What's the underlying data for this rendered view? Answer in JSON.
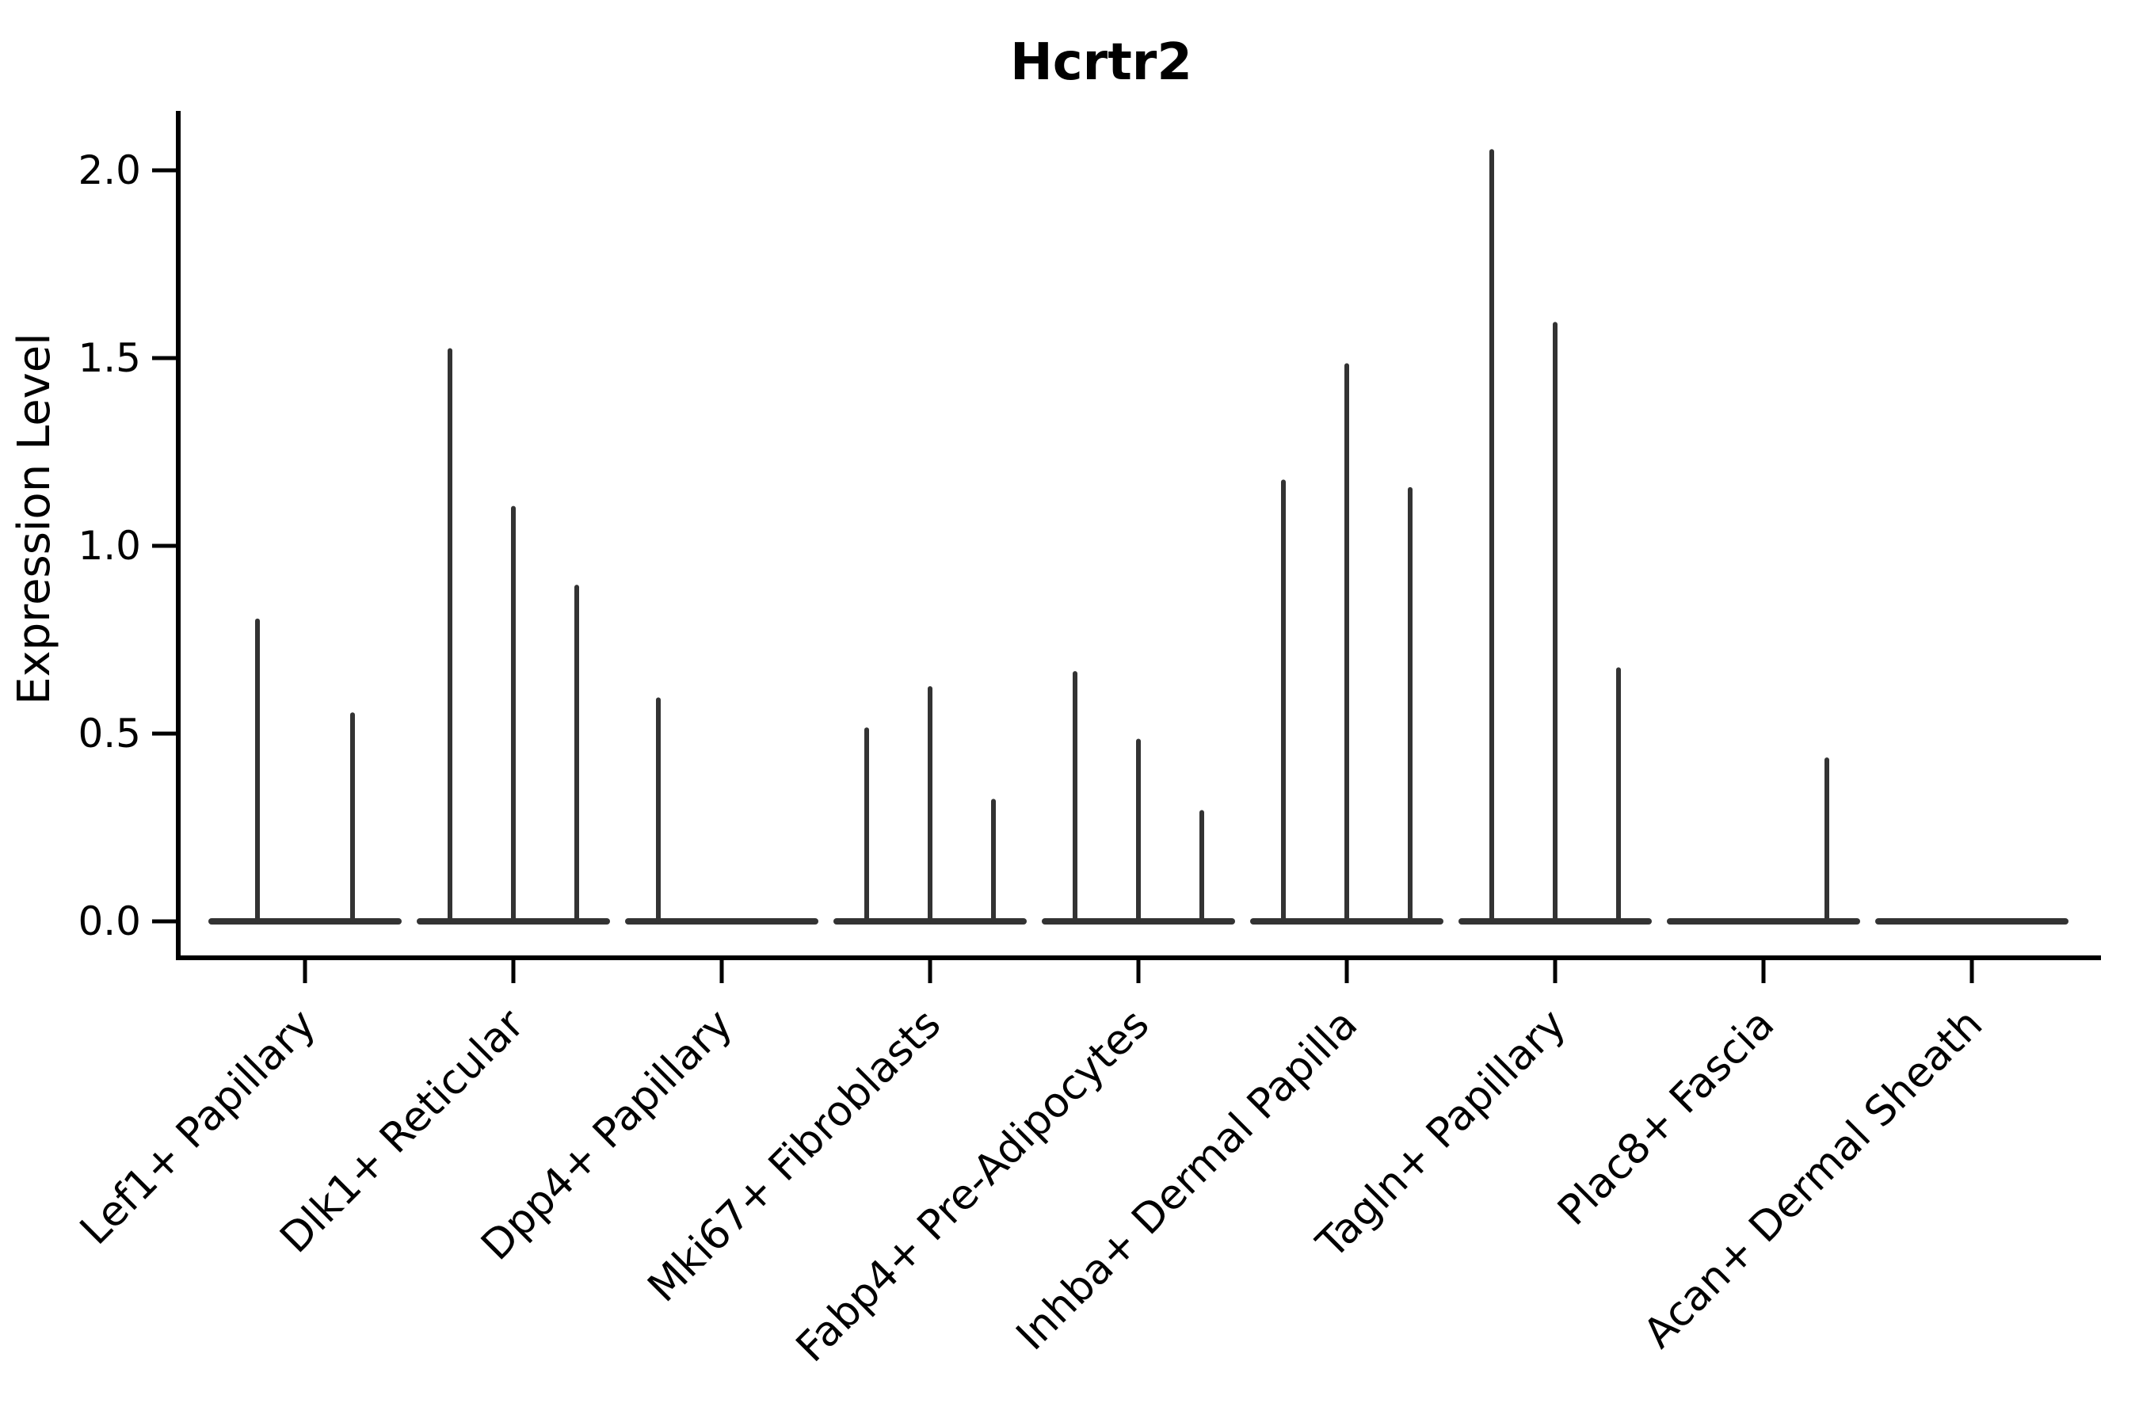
{
  "chart_data": {
    "type": "violin",
    "title": "Hcrtr2",
    "ylabel": "Expression Level",
    "xlabel": "",
    "yticks": [
      0.0,
      0.5,
      1.0,
      1.5,
      2.0
    ],
    "ylim": [
      -0.1,
      2.16
    ],
    "grid": false,
    "legend": false,
    "x_tick_rotation_deg": 45,
    "colors": {
      "violin_stroke": "#333333",
      "axis": "#000000",
      "text": "#000000",
      "background": "#ffffff"
    },
    "categories": [
      {
        "label": "Lef1+ Papillary",
        "violin_max": [
          0.8,
          0.55
        ]
      },
      {
        "label": "Dlk1+ Reticular",
        "violin_max": [
          1.52,
          1.1,
          0.89
        ]
      },
      {
        "label": "Dpp4+ Papillary",
        "violin_max": [
          0.59,
          0,
          0
        ]
      },
      {
        "label": "Mki67+ Fibroblasts",
        "violin_max": [
          0.51,
          0.62,
          0.32
        ]
      },
      {
        "label": "Fabp4+ Pre-Adipocytes",
        "violin_max": [
          0.66,
          0.48,
          0.29
        ]
      },
      {
        "label": "Inhba+ Dermal Papilla",
        "violin_max": [
          1.17,
          1.48,
          1.15
        ]
      },
      {
        "label": "Tagln+ Papillary",
        "violin_max": [
          2.05,
          1.59,
          0.67
        ]
      },
      {
        "label": "Plac8+ Fascia",
        "violin_max": [
          0,
          0,
          0.43
        ]
      },
      {
        "label": "Acan+ Dermal Sheath",
        "violin_max": [
          0,
          0,
          0
        ]
      }
    ]
  }
}
